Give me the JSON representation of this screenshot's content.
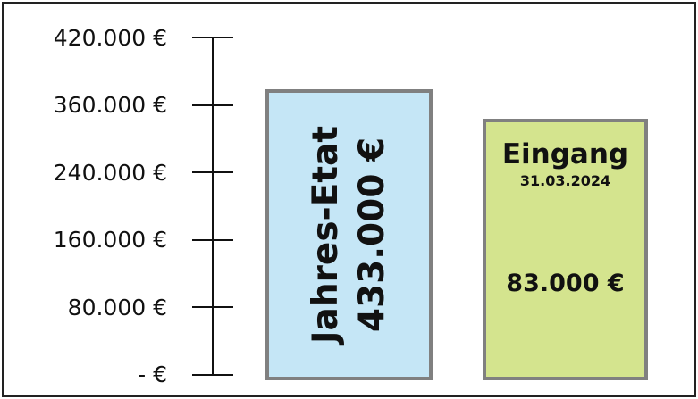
{
  "colors": {
    "budget_fill": "#c5e6f6",
    "income_fill": "#d4e48e",
    "box_border": "#808080",
    "axis": "#111111"
  },
  "chart_data": {
    "type": "bar",
    "axis": {
      "tick_labels": [
        "420.000 €",
        "360.000 €",
        "240.000 €",
        "160.000 €",
        "80.000 €",
        "- €"
      ]
    },
    "bars": [
      {
        "name": "Jahres-Etat",
        "label": "Jahres-Etat",
        "value_label": "433.000 €",
        "value": 433000,
        "orientation": "vertical-text"
      },
      {
        "name": "Eingang",
        "label": "Eingang",
        "date": "31.03.2024",
        "value_label": "83.000 €",
        "value": 83000
      }
    ]
  }
}
